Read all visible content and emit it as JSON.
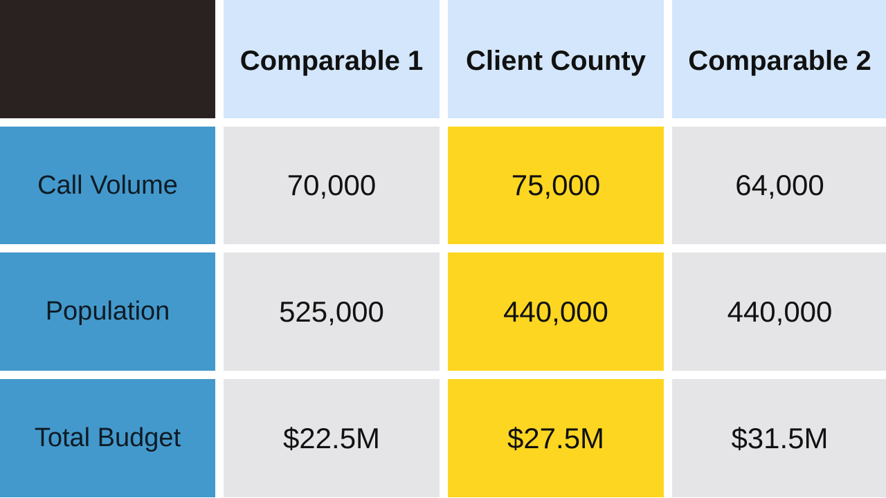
{
  "colors": {
    "corner": "#2a2220",
    "column_header_bg": "#d3e6fb",
    "row_header_bg": "#4499cc",
    "value_bg": "#e5e5e7",
    "highlight_bg": "#fdd621"
  },
  "table": {
    "columns": [
      "Comparable 1",
      "Client County",
      "Comparable 2"
    ],
    "highlighted_column": "Client County",
    "rows": [
      {
        "label": "Call Volume",
        "values": [
          "70,000",
          "75,000",
          "64,000"
        ]
      },
      {
        "label": "Population",
        "values": [
          "525,000",
          "440,000",
          "440,000"
        ]
      },
      {
        "label": "Total Budget",
        "values": [
          "$22.5M",
          "$27.5M",
          "$31.5M"
        ]
      }
    ]
  }
}
